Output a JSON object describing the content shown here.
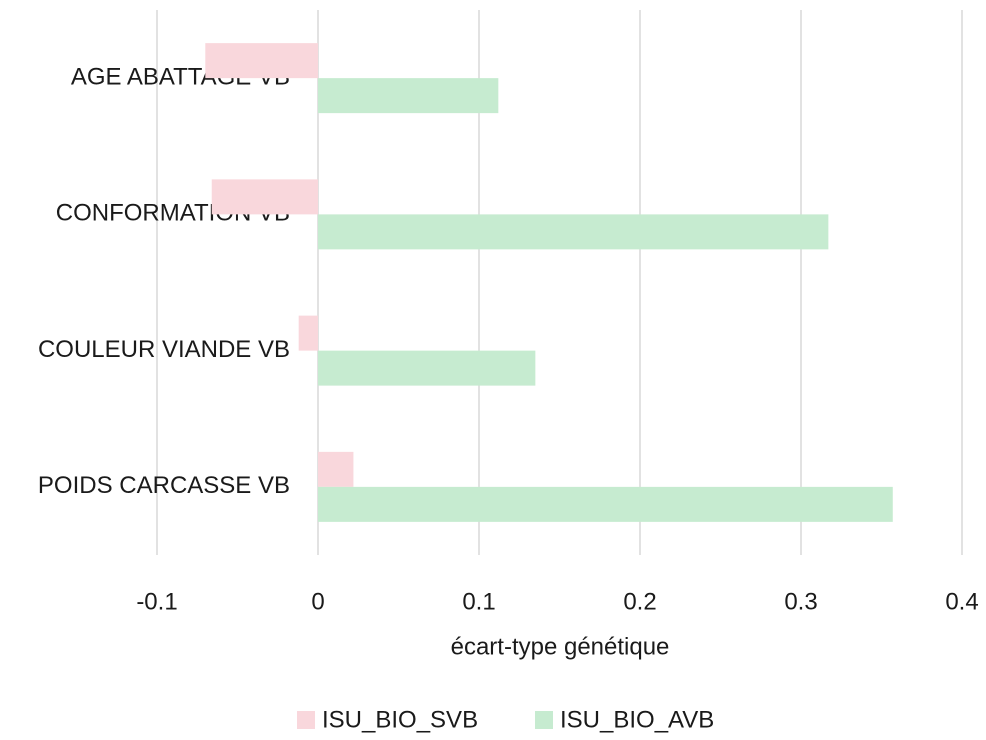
{
  "chart_data": {
    "type": "hbar",
    "x_label": "écart-type génétique",
    "categories": [
      "AGE ABATTAGE VB",
      "CONFORMATION VB",
      "COULEUR VIANDE VB",
      "POIDS CARCASSE VB"
    ],
    "series": [
      {
        "name": "ISU_BIO_SVB",
        "color": "#f9d7dc",
        "values": [
          -0.07,
          -0.066,
          -0.012,
          0.022
        ]
      },
      {
        "name": "ISU_BIO_AVB",
        "color": "#c6ebd0",
        "values": [
          0.112,
          0.317,
          0.135,
          0.357
        ]
      }
    ],
    "xlim": [
      -0.1,
      0.4
    ],
    "xticks": [
      -0.1,
      0,
      0.1,
      0.2,
      0.3,
      0.4
    ],
    "grid": true,
    "legend": "bottom"
  }
}
